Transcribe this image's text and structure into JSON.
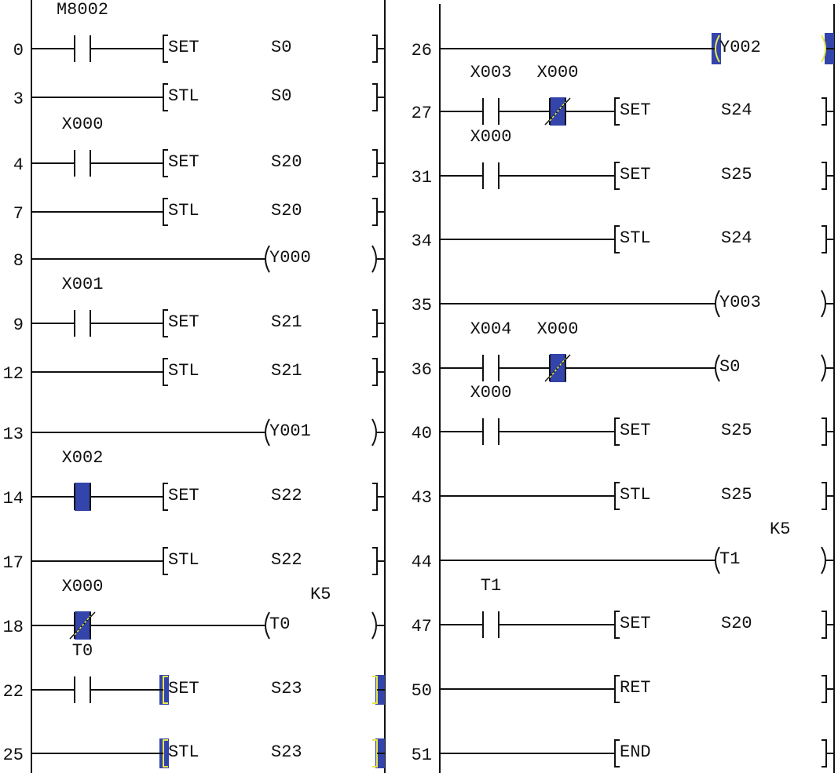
{
  "panels": [
    {
      "name": "left",
      "rungs": [
        {
          "step": "0",
          "contacts": [
            {
              "label": "M8002",
              "type": "NO",
              "active": false
            }
          ],
          "output": {
            "kind": "instr",
            "op": "SET",
            "arg": "S0",
            "highlighted": false
          }
        },
        {
          "step": "3",
          "contacts": [],
          "output": {
            "kind": "instr",
            "op": "STL",
            "arg": "S0",
            "highlighted": false
          }
        },
        {
          "step": "4",
          "contacts": [
            {
              "label": "X000",
              "type": "NO",
              "active": false
            }
          ],
          "output": {
            "kind": "instr",
            "op": "SET",
            "arg": "S20",
            "highlighted": false
          }
        },
        {
          "step": "7",
          "contacts": [],
          "output": {
            "kind": "instr",
            "op": "STL",
            "arg": "S20",
            "highlighted": false
          }
        },
        {
          "step": "8",
          "contacts": [],
          "output": {
            "kind": "coil",
            "arg": "Y000",
            "highlighted": false
          }
        },
        {
          "step": "9",
          "contacts": [
            {
              "label": "X001",
              "type": "NO",
              "active": false
            }
          ],
          "output": {
            "kind": "instr",
            "op": "SET",
            "arg": "S21",
            "highlighted": false
          }
        },
        {
          "step": "12",
          "contacts": [],
          "output": {
            "kind": "instr",
            "op": "STL",
            "arg": "S21",
            "highlighted": false
          }
        },
        {
          "step": "13",
          "contacts": [],
          "output": {
            "kind": "coil",
            "arg": "Y001",
            "highlighted": false
          }
        },
        {
          "step": "14",
          "contacts": [
            {
              "label": "X002",
              "type": "NO",
              "active": true
            }
          ],
          "output": {
            "kind": "instr",
            "op": "SET",
            "arg": "S22",
            "highlighted": false
          }
        },
        {
          "step": "17",
          "contacts": [],
          "output": {
            "kind": "instr",
            "op": "STL",
            "arg": "S22",
            "highlighted": false
          }
        },
        {
          "step": "18",
          "contacts": [
            {
              "label": "X000",
              "type": "NC",
              "active": true
            }
          ],
          "output": {
            "kind": "coil",
            "arg": "T0",
            "const": "K5",
            "highlighted": false
          }
        },
        {
          "step": "22",
          "contacts": [
            {
              "label": "T0",
              "type": "NO",
              "active": false
            }
          ],
          "output": {
            "kind": "instr",
            "op": "SET",
            "arg": "S23",
            "highlighted": true
          }
        },
        {
          "step": "25",
          "contacts": [],
          "output": {
            "kind": "instr",
            "op": "STL",
            "arg": "S23",
            "highlighted": true
          }
        }
      ]
    },
    {
      "name": "right",
      "rungs": [
        {
          "step": "26",
          "contacts": [],
          "output": {
            "kind": "coil",
            "arg": "Y002",
            "highlighted": true
          }
        },
        {
          "step": "27",
          "contacts": [
            {
              "label": "X003",
              "type": "NO",
              "active": false
            },
            {
              "label": "X000",
              "type": "NC",
              "active": true
            }
          ],
          "output": {
            "kind": "instr",
            "op": "SET",
            "arg": "S24",
            "highlighted": false
          }
        },
        {
          "step": "31",
          "contacts": [
            {
              "label": "X000",
              "type": "NO",
              "active": false
            }
          ],
          "output": {
            "kind": "instr",
            "op": "SET",
            "arg": "S25",
            "highlighted": false
          }
        },
        {
          "step": "34",
          "contacts": [],
          "output": {
            "kind": "instr",
            "op": "STL",
            "arg": "S24",
            "highlighted": false
          }
        },
        {
          "step": "35",
          "contacts": [],
          "output": {
            "kind": "coil",
            "arg": "Y003",
            "highlighted": false
          }
        },
        {
          "step": "36",
          "contacts": [
            {
              "label": "X004",
              "type": "NO",
              "active": false
            },
            {
              "label": "X000",
              "type": "NC",
              "active": true
            }
          ],
          "output": {
            "kind": "coil",
            "arg": "S0",
            "highlighted": false
          }
        },
        {
          "step": "40",
          "contacts": [
            {
              "label": "X000",
              "type": "NO",
              "active": false
            }
          ],
          "output": {
            "kind": "instr",
            "op": "SET",
            "arg": "S25",
            "highlighted": false
          }
        },
        {
          "step": "43",
          "contacts": [],
          "output": {
            "kind": "instr",
            "op": "STL",
            "arg": "S25",
            "highlighted": false
          }
        },
        {
          "step": "44",
          "contacts": [],
          "output": {
            "kind": "coil",
            "arg": "T1",
            "const": "K5",
            "highlighted": false
          }
        },
        {
          "step": "47",
          "contacts": [
            {
              "label": "T1",
              "type": "NO",
              "active": false
            }
          ],
          "output": {
            "kind": "instr",
            "op": "SET",
            "arg": "S20",
            "highlighted": false
          }
        },
        {
          "step": "50",
          "contacts": [],
          "output": {
            "kind": "instr",
            "op": "RET",
            "arg": "",
            "highlighted": false
          }
        },
        {
          "step": "51",
          "contacts": [],
          "output": {
            "kind": "instr",
            "op": "END",
            "arg": "",
            "highlighted": false
          }
        }
      ]
    }
  ],
  "colors": {
    "line": "#111111",
    "active_fill": "#3344aa",
    "highlight_mark": "#e8e84a"
  }
}
